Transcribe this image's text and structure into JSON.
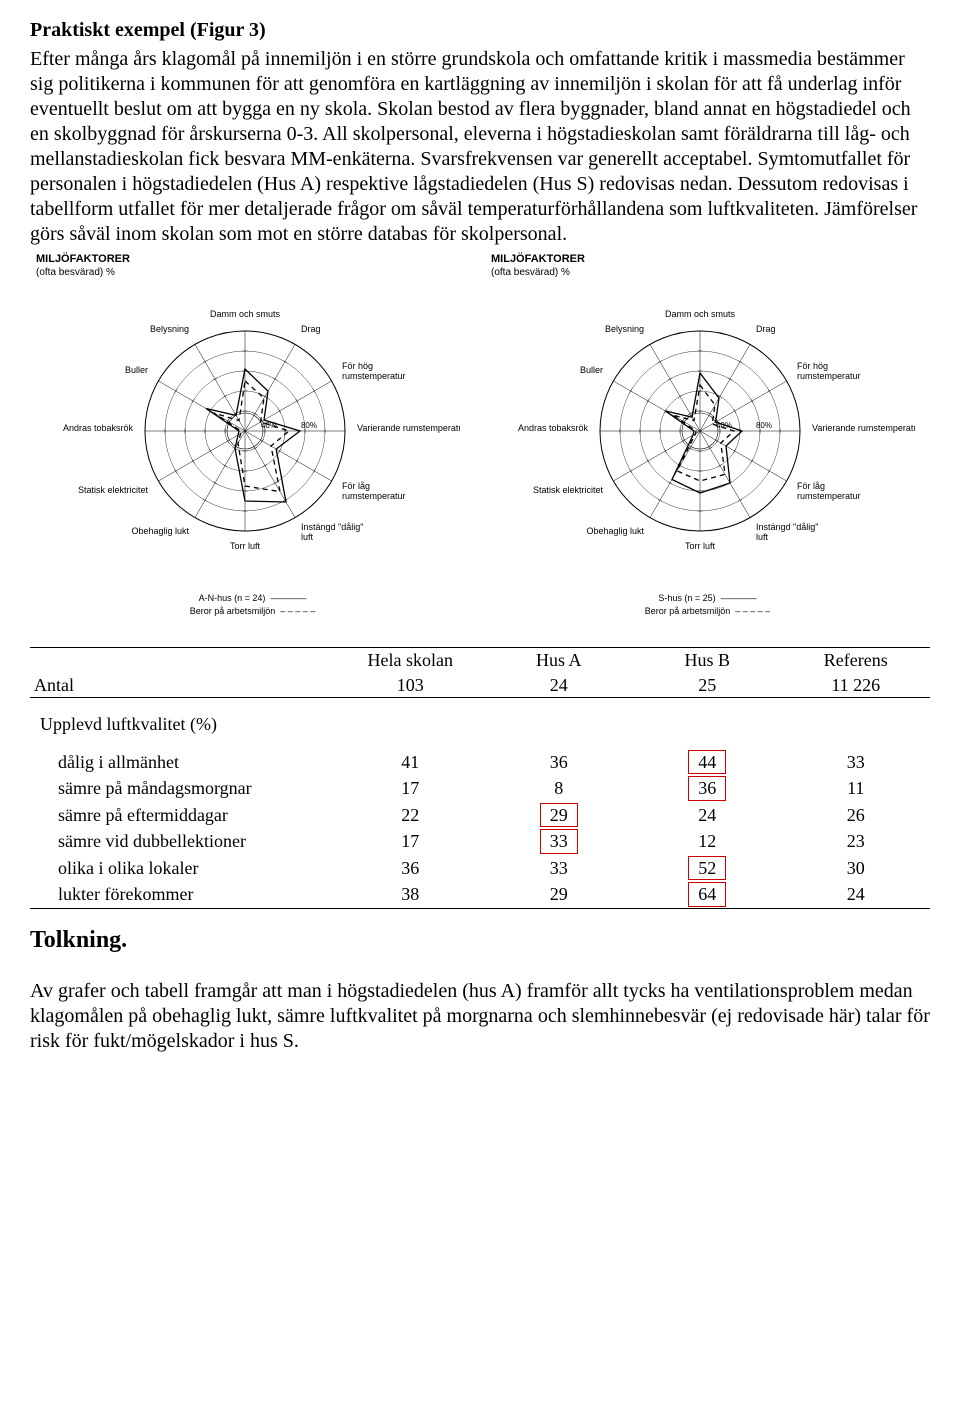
{
  "heading": "Praktiskt exempel (Figur 3)",
  "paragraph1": "Efter många års klagomål på innemiljön i en större grundskola och omfattande kritik i massmedia bestämmer sig politikerna i kommunen för att genomföra en kartläggning av innemiljön i skolan för att få underlag inför eventuellt beslut om att bygga en ny skola. Skolan bestod av flera byggnader, bland annat en högstadiedel och en skolbyggnad för årskurserna 0-3. All skolpersonal, eleverna i högstadieskolan samt föräldrarna till låg- och mellanstadieskolan fick besvara MM-enkäterna. Svarsfrekvensen var generellt acceptabel. Symtomutfallet för personalen i högstadiedelen (Hus A) respektive lågstadiedelen (Hus S) redovisas nedan. Dessutom redovisas i tabellform utfallet för mer detaljerade frågor om såväl temperaturförhållandena som luftkvaliteten. Jämförelser görs såväl inom skolan som mot en större databas för skolpersonal.",
  "chart": {
    "title": "MILJÖFAKTORER",
    "subtitle": "(ofta besvärad) %",
    "type": "radar",
    "tick_labels": [
      "40%",
      "80%"
    ],
    "tick_positions": [
      40,
      80
    ],
    "max": 100,
    "background_color": "#ffffff",
    "grid_color": "#000000",
    "line_width": 1,
    "axes": [
      "Damm och smuts",
      "Drag",
      "För hög rumstemperatur",
      "Varierande rumstemperatur",
      "För låg rumstemperatur",
      "Instängd \"dålig\" luft",
      "Torr luft",
      "Obehaglig lukt",
      "Statisk elektricitet",
      "Andras tobaksrök",
      "Buller",
      "Belysning"
    ],
    "left": {
      "legend1": "A-N-hus (n = 24)",
      "legend2": "Beror på arbetsmiljön",
      "series": [
        {
          "name": "main",
          "dash": "solid",
          "color": "#000000",
          "values": [
            62,
            46,
            22,
            55,
            36,
            82,
            70,
            20,
            8,
            6,
            45,
            18
          ]
        },
        {
          "name": "env",
          "dash": "dashed",
          "color": "#000000",
          "values": [
            50,
            38,
            18,
            44,
            30,
            70,
            55,
            14,
            5,
            4,
            36,
            12
          ]
        }
      ]
    },
    "right": {
      "legend1": "S-hus (n = 25)",
      "legend2": "Beror på arbetsmiljön",
      "series": [
        {
          "name": "main",
          "dash": "solid",
          "color": "#000000",
          "values": [
            58,
            38,
            18,
            42,
            30,
            60,
            62,
            56,
            8,
            6,
            40,
            16
          ]
        },
        {
          "name": "env",
          "dash": "dashed",
          "color": "#000000",
          "values": [
            46,
            30,
            14,
            34,
            24,
            50,
            50,
            46,
            5,
            4,
            32,
            12
          ]
        }
      ]
    }
  },
  "table": {
    "header": [
      "",
      "Hela skolan",
      "Hus A",
      "Hus B",
      "Referens"
    ],
    "antal_row": [
      "Antal",
      "103",
      "24",
      "25",
      "11 226"
    ],
    "section_label": "Upplevd luftkvalitet (%)",
    "rows": [
      {
        "label": "dålig i allmänhet",
        "v": [
          "41",
          "36",
          "44",
          "33"
        ],
        "box": [
          false,
          false,
          true,
          false
        ]
      },
      {
        "label": "sämre på måndagsmorgnar",
        "v": [
          "17",
          "8",
          "36",
          "11"
        ],
        "box": [
          false,
          false,
          true,
          false
        ]
      },
      {
        "label": "sämre på eftermiddagar",
        "v": [
          "22",
          "29",
          "24",
          "26"
        ],
        "box": [
          false,
          true,
          false,
          false
        ]
      },
      {
        "label": "sämre vid dubbellektioner",
        "v": [
          "17",
          "33",
          "12",
          "23"
        ],
        "box": [
          false,
          true,
          false,
          false
        ]
      },
      {
        "label": "olika i olika lokaler",
        "v": [
          "36",
          "33",
          "52",
          "30"
        ],
        "box": [
          false,
          false,
          true,
          false
        ]
      },
      {
        "label": "lukter förekommer",
        "v": [
          "38",
          "29",
          "64",
          "24"
        ],
        "box": [
          false,
          false,
          true,
          false
        ]
      }
    ],
    "highlight_color": "#d00000"
  },
  "interp_title": "Tolkning.",
  "interp_body": "Av grafer och tabell framgår att man i högstadiedelen (hus A) framför allt tycks ha ventilationsproblem medan klagomålen på obehaglig lukt, sämre luftkvalitet på morgnarna och slemhinnebesvär (ej redovisade här) talar för risk för fukt/mögelskador i hus S."
}
